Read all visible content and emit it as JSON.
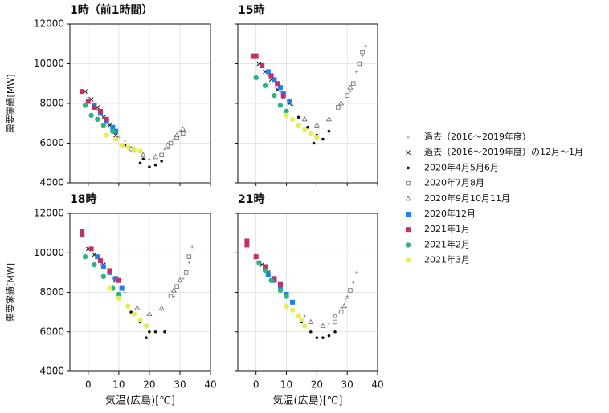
{
  "legend": [
    {
      "name": "過去（2016～2019年度）",
      "color": "#888888",
      "marker": "plus"
    },
    {
      "name": "過去（2016～2019年度）の12月～1月",
      "color": "#111111",
      "marker": "x"
    },
    {
      "name": "2020年4月5月6月",
      "color": "#111111",
      "marker": "dot"
    },
    {
      "name": "2020年7月8月",
      "color": "#666666",
      "marker": "square-open"
    },
    {
      "name": "2020年9月10月11月",
      "color": "#666666",
      "marker": "triangle-open"
    },
    {
      "name": "2020年12月",
      "color": "#1e7ff0",
      "marker": "square"
    },
    {
      "name": "2021年1月",
      "color": "#c2306a",
      "marker": "square"
    },
    {
      "name": "2021年2月",
      "color": "#2bb57f",
      "marker": "circle"
    },
    {
      "name": "2021年3月",
      "color": "#e8ec5a",
      "marker": "circle"
    }
  ],
  "chart_data": [
    {
      "type": "scatter",
      "title": "1時（前1時間）",
      "ylabel": "需要実績[MW]",
      "xlim": [
        -6,
        40
      ],
      "xticks": [
        0,
        10,
        20,
        30,
        40
      ],
      "ylim": [
        4000,
        12000
      ],
      "yticks": [
        4000,
        6000,
        8000,
        10000,
        12000
      ],
      "grid": true,
      "series": [
        {
          "x": [
            0,
            3,
            6,
            10,
            14,
            18,
            22,
            25,
            28,
            30,
            32,
            12,
            20
          ],
          "values": [
            8300,
            7700,
            7000,
            6300,
            5800,
            5400,
            5300,
            5700,
            6200,
            6600,
            7000,
            6100,
            5200
          ]
        },
        {
          "x": [
            -1,
            1,
            3,
            5,
            7,
            9
          ],
          "values": [
            8600,
            8200,
            7800,
            7300,
            6900,
            6400
          ]
        },
        {
          "x": [
            12,
            15,
            18,
            20,
            22,
            24,
            17
          ],
          "values": [
            5900,
            5600,
            5200,
            4800,
            4900,
            5100,
            5000
          ]
        },
        {
          "x": [
            24,
            26,
            27,
            29,
            31
          ],
          "values": [
            5400,
            5800,
            6000,
            6300,
            6500
          ]
        },
        {
          "x": [
            14,
            18,
            22,
            26,
            29,
            31
          ],
          "values": [
            5700,
            5400,
            5300,
            5900,
            6400,
            6700
          ]
        },
        {
          "x": [
            2,
            4,
            6,
            8,
            9
          ],
          "values": [
            7900,
            7500,
            7100,
            6800,
            6600
          ]
        },
        {
          "x": [
            -2,
            0,
            2,
            4,
            6
          ],
          "values": [
            8600,
            8100,
            7800,
            7600,
            7200
          ]
        },
        {
          "x": [
            -1,
            1,
            3,
            5,
            8
          ],
          "values": [
            7900,
            7400,
            7200,
            6900,
            6600
          ]
        },
        {
          "x": [
            6,
            9,
            11,
            13,
            15,
            17
          ],
          "values": [
            6400,
            6200,
            5900,
            5800,
            5700,
            5600
          ]
        }
      ]
    },
    {
      "type": "scatter",
      "title": "15時",
      "xlim": [
        -6,
        40
      ],
      "xticks": [
        0,
        10,
        20,
        30,
        40
      ],
      "ylim": [
        4000,
        12000
      ],
      "yticks": [
        4000,
        6000,
        8000,
        10000,
        12000
      ],
      "grid": true,
      "series": [
        {
          "x": [
            0,
            4,
            8,
            12,
            16,
            20,
            24,
            28,
            31,
            33,
            35,
            36
          ],
          "values": [
            10400,
            9400,
            8600,
            7900,
            7200,
            6800,
            7000,
            7800,
            8600,
            9600,
            10400,
            10900
          ]
        },
        {
          "x": [
            1,
            3,
            5,
            7,
            9,
            11
          ],
          "values": [
            10000,
            9600,
            9200,
            8700,
            8300,
            8000
          ]
        },
        {
          "x": [
            14,
            17,
            20,
            22,
            24,
            19
          ],
          "values": [
            7300,
            6800,
            6400,
            6200,
            6600,
            6000
          ]
        },
        {
          "x": [
            27,
            30,
            32,
            34,
            35
          ],
          "values": [
            7800,
            8400,
            9000,
            10000,
            10600
          ]
        },
        {
          "x": [
            16,
            20,
            24,
            28,
            31
          ],
          "values": [
            7200,
            6900,
            7200,
            8000,
            8800
          ]
        },
        {
          "x": [
            4,
            6,
            8,
            9,
            11
          ],
          "values": [
            9600,
            9200,
            8800,
            8500,
            8100
          ]
        },
        {
          "x": [
            -1,
            0,
            2,
            5,
            7,
            9
          ],
          "values": [
            10400,
            10400,
            9900,
            9400,
            9000,
            8400
          ]
        },
        {
          "x": [
            0,
            3,
            6,
            8,
            10
          ],
          "values": [
            9300,
            8900,
            8400,
            7900,
            7600
          ]
        },
        {
          "x": [
            10,
            12,
            14,
            16,
            18,
            20
          ],
          "values": [
            7400,
            7200,
            6900,
            6700,
            6500,
            6300
          ]
        }
      ]
    },
    {
      "type": "scatter",
      "title": "18時",
      "ylabel": "需要実績[MW]",
      "xlabel": "気温(広島)[℃]",
      "xlim": [
        -6,
        40
      ],
      "xticks": [
        0,
        10,
        20,
        30,
        40
      ],
      "ylim": [
        4000,
        12000
      ],
      "yticks": [
        4000,
        6000,
        8000,
        10000,
        12000
      ],
      "grid": true,
      "series": [
        {
          "x": [
            0,
            4,
            8,
            12,
            16,
            20,
            24,
            28,
            31,
            33,
            34
          ],
          "values": [
            10200,
            9400,
            8700,
            8000,
            7300,
            6900,
            7100,
            7800,
            8700,
            9500,
            10300
          ]
        },
        {
          "x": [
            0,
            2,
            5,
            7,
            9
          ],
          "values": [
            10200,
            9900,
            9400,
            9000,
            8600
          ]
        },
        {
          "x": [
            14,
            17,
            20,
            22,
            25,
            19
          ],
          "values": [
            7000,
            6500,
            6000,
            6000,
            6000,
            5700
          ]
        },
        {
          "x": [
            27,
            29,
            32,
            33
          ],
          "values": [
            7800,
            8300,
            9000,
            9800
          ]
        },
        {
          "x": [
            16,
            20,
            24,
            28,
            30
          ],
          "values": [
            7200,
            6900,
            7200,
            8100,
            8600
          ]
        },
        {
          "x": [
            3,
            5,
            7,
            9,
            11
          ],
          "values": [
            9800,
            9300,
            9000,
            8700,
            8200
          ]
        },
        {
          "x": [
            -2,
            -2,
            1,
            4,
            7,
            10
          ],
          "values": [
            11100,
            10900,
            10200,
            9600,
            9100,
            8600
          ]
        },
        {
          "x": [
            -1,
            2,
            5,
            8,
            10
          ],
          "values": [
            9800,
            9400,
            8800,
            8200,
            7900
          ]
        },
        {
          "x": [
            7,
            10,
            13,
            15,
            17,
            19
          ],
          "values": [
            8200,
            7700,
            7300,
            6900,
            6600,
            6300
          ]
        }
      ]
    },
    {
      "type": "scatter",
      "title": "21時",
      "xlabel": "気温(広島)[℃]",
      "xlim": [
        -6,
        40
      ],
      "xticks": [
        0,
        10,
        20,
        30,
        40
      ],
      "ylim": [
        4000,
        12000
      ],
      "yticks": [
        4000,
        6000,
        8000,
        10000,
        12000
      ],
      "grid": true,
      "series": [
        {
          "x": [
            0,
            4,
            8,
            12,
            16,
            20,
            24,
            28,
            30,
            32,
            33
          ],
          "values": [
            9900,
            9000,
            8200,
            7500,
            6800,
            6300,
            6400,
            7200,
            7800,
            8500,
            9000
          ]
        },
        {
          "x": [
            0,
            2,
            4,
            6,
            8
          ],
          "values": [
            9800,
            9400,
            9000,
            8600,
            8200
          ]
        },
        {
          "x": [
            15,
            18,
            20,
            22,
            24,
            26
          ],
          "values": [
            6500,
            6000,
            5700,
            5700,
            5800,
            6000
          ]
        },
        {
          "x": [
            26,
            28,
            30,
            31
          ],
          "values": [
            6500,
            7000,
            7600,
            8100
          ]
        },
        {
          "x": [
            14,
            18,
            22,
            26,
            29
          ],
          "values": [
            6800,
            6500,
            6300,
            6800,
            7300
          ]
        },
        {
          "x": [
            4,
            6,
            8,
            10,
            12
          ],
          "values": [
            8900,
            8600,
            8300,
            7900,
            7500
          ]
        },
        {
          "x": [
            -3,
            -3,
            0,
            3,
            6,
            8
          ],
          "values": [
            10600,
            10400,
            9800,
            9300,
            8700,
            8400
          ]
        },
        {
          "x": [
            1,
            3,
            5,
            8,
            10
          ],
          "values": [
            9500,
            9100,
            8600,
            8100,
            7800
          ]
        },
        {
          "x": [
            10,
            12,
            14,
            15,
            16
          ],
          "values": [
            7300,
            7100,
            6800,
            6600,
            6300
          ]
        }
      ]
    }
  ]
}
